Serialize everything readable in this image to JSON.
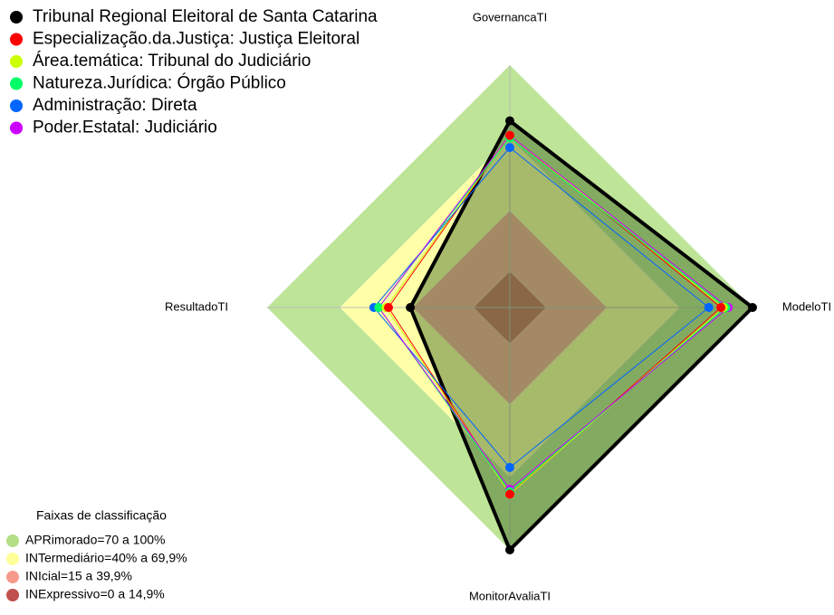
{
  "chart_data": {
    "type": "radar",
    "axes": [
      "GovernancaTI",
      "ModeloTI",
      "MonitorAvaliaTI",
      "ResultadoTI"
    ],
    "rlim": [
      0,
      100
    ],
    "series": [
      {
        "name": "Tribunal Regional Eleitoral de Santa Catarina",
        "color": "#000000",
        "values": [
          77,
          100,
          100,
          41
        ]
      },
      {
        "name": "Especialização.da.Justiça: Justiça Eleitoral",
        "color": "#ff0000",
        "values": [
          71,
          87,
          77,
          50
        ]
      },
      {
        "name": "Área.temática: Tribunal do Judiciário",
        "color": "#ccff00",
        "values": [
          71,
          88,
          77,
          51
        ]
      },
      {
        "name": "Natureza.Jurídica: Órgão Público",
        "color": "#00ff66",
        "values": [
          70,
          89,
          76,
          54
        ]
      },
      {
        "name": "Administração: Direta",
        "color": "#0066ff",
        "values": [
          66,
          82,
          66,
          56
        ]
      },
      {
        "name": "Poder.Estatal: Judiciário",
        "color": "#cc00ff",
        "values": [
          71,
          90,
          75,
          54
        ]
      }
    ],
    "bands_title": "Faixas de classificação",
    "bands": [
      {
        "label": "APRimorado=70 a 100%",
        "from": 70,
        "to": 100,
        "color": "#b3df86"
      },
      {
        "label": "INTermediário=40% a 69,9%",
        "from": 40,
        "to": 69.9,
        "color": "#ffff99"
      },
      {
        "label": "INIcial=15 a 39,9%",
        "from": 15,
        "to": 39.9,
        "color": "#f79a8c"
      },
      {
        "label": "INExpressivo=0 a 14,9%",
        "from": 0,
        "to": 14.9,
        "color": "#c0504d"
      }
    ]
  }
}
